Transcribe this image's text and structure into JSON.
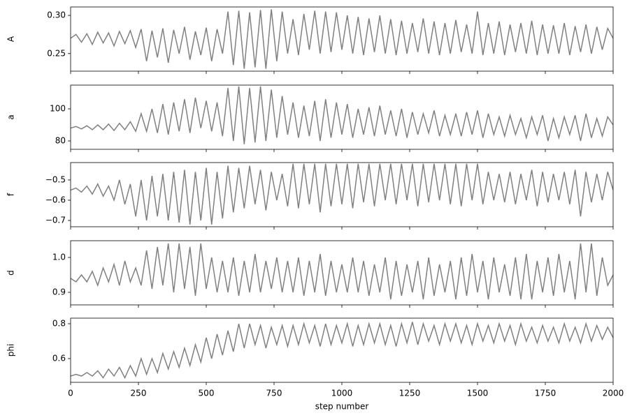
{
  "chart_data": {
    "type": "line",
    "xlabel": "step number",
    "xlim": [
      0,
      2000
    ],
    "xticks": [
      0,
      250,
      500,
      750,
      1000,
      1250,
      1500,
      1750,
      2000
    ],
    "x": [
      0,
      20,
      40,
      60,
      80,
      100,
      120,
      140,
      160,
      180,
      200,
      220,
      240,
      260,
      280,
      300,
      320,
      340,
      360,
      380,
      400,
      420,
      440,
      460,
      480,
      500,
      520,
      540,
      560,
      580,
      600,
      620,
      640,
      660,
      680,
      700,
      720,
      740,
      760,
      780,
      800,
      820,
      840,
      860,
      880,
      900,
      920,
      940,
      960,
      980,
      1000,
      1020,
      1040,
      1060,
      1080,
      1100,
      1120,
      1140,
      1160,
      1180,
      1200,
      1220,
      1240,
      1260,
      1280,
      1300,
      1320,
      1340,
      1360,
      1380,
      1400,
      1420,
      1440,
      1460,
      1480,
      1500,
      1520,
      1540,
      1560,
      1580,
      1600,
      1620,
      1640,
      1660,
      1680,
      1700,
      1720,
      1740,
      1760,
      1780,
      1800,
      1820,
      1840,
      1860,
      1880,
      1900,
      1920,
      1940,
      1960,
      1980,
      2000
    ],
    "series": [
      {
        "name": "A",
        "color": "#808080",
        "ylim": [
          0.227,
          0.311
        ],
        "yticks": [
          0.25,
          {
            "value": 0.3,
            "label": "0.30"
          }
        ],
        "values": [
          0.27,
          0.275,
          0.265,
          0.276,
          0.262,
          0.278,
          0.264,
          0.277,
          0.26,
          0.279,
          0.263,
          0.28,
          0.258,
          0.282,
          0.24,
          0.28,
          0.245,
          0.283,
          0.238,
          0.281,
          0.25,
          0.285,
          0.242,
          0.279,
          0.248,
          0.284,
          0.24,
          0.282,
          0.25,
          0.305,
          0.235,
          0.306,
          0.23,
          0.304,
          0.232,
          0.307,
          0.23,
          0.308,
          0.24,
          0.305,
          0.25,
          0.295,
          0.248,
          0.302,
          0.255,
          0.306,
          0.25,
          0.305,
          0.252,
          0.304,
          0.255,
          0.3,
          0.25,
          0.298,
          0.248,
          0.296,
          0.252,
          0.3,
          0.25,
          0.295,
          0.248,
          0.293,
          0.25,
          0.29,
          0.252,
          0.296,
          0.25,
          0.292,
          0.248,
          0.29,
          0.25,
          0.294,
          0.252,
          0.288,
          0.25,
          0.305,
          0.248,
          0.29,
          0.25,
          0.292,
          0.248,
          0.288,
          0.252,
          0.29,
          0.25,
          0.293,
          0.248,
          0.288,
          0.25,
          0.287,
          0.25,
          0.29,
          0.248,
          0.286,
          0.252,
          0.288,
          0.25,
          0.285,
          0.255,
          0.283,
          0.27
        ]
      },
      {
        "name": "a",
        "color": "#808080",
        "ylim": [
          74.8,
          114.8
        ],
        "yticks": [
          80,
          100
        ],
        "values": [
          88,
          89,
          87.5,
          89.5,
          87,
          90,
          87,
          90.5,
          86.5,
          91,
          87,
          92,
          86,
          97,
          86,
          100,
          85,
          103,
          84,
          104,
          86,
          106,
          85,
          107,
          88,
          105,
          86,
          104,
          83,
          113,
          80,
          114,
          78,
          113,
          79,
          114,
          80,
          112,
          82,
          108,
          84,
          104,
          82,
          102,
          83,
          105,
          80,
          106,
          82,
          104,
          84,
          103,
          82,
          100,
          84,
          101,
          83,
          102,
          84,
          99,
          83,
          100,
          82,
          98,
          84,
          97,
          85,
          99,
          83,
          96,
          84,
          97,
          83,
          98,
          84,
          99,
          82,
          97,
          84,
          95,
          83,
          96,
          84,
          94,
          82,
          95,
          84,
          96,
          80,
          94,
          82,
          95,
          84,
          96,
          80,
          97,
          82,
          94,
          83,
          95,
          90
        ]
      },
      {
        "name": "f",
        "color": "#808080",
        "ylim": [
          -0.731,
          -0.414
        ],
        "yticks": [
          {
            "value": -0.7,
            "label": "−0.7"
          },
          {
            "value": -0.6,
            "label": "−0.6"
          },
          {
            "value": -0.5,
            "label": "−0.5"
          }
        ],
        "values": [
          -0.55,
          -0.54,
          -0.56,
          -0.53,
          -0.57,
          -0.52,
          -0.58,
          -0.53,
          -0.6,
          -0.5,
          -0.62,
          -0.52,
          -0.68,
          -0.5,
          -0.7,
          -0.48,
          -0.68,
          -0.47,
          -0.7,
          -0.46,
          -0.71,
          -0.45,
          -0.72,
          -0.46,
          -0.7,
          -0.44,
          -0.72,
          -0.46,
          -0.69,
          -0.43,
          -0.66,
          -0.44,
          -0.64,
          -0.43,
          -0.62,
          -0.45,
          -0.65,
          -0.46,
          -0.6,
          -0.47,
          -0.63,
          -0.42,
          -0.64,
          -0.42,
          -0.62,
          -0.42,
          -0.66,
          -0.42,
          -0.63,
          -0.42,
          -0.62,
          -0.42,
          -0.64,
          -0.42,
          -0.61,
          -0.42,
          -0.63,
          -0.42,
          -0.6,
          -0.42,
          -0.62,
          -0.42,
          -0.6,
          -0.42,
          -0.63,
          -0.42,
          -0.61,
          -0.42,
          -0.6,
          -0.42,
          -0.62,
          -0.42,
          -0.63,
          -0.42,
          -0.6,
          -0.42,
          -0.62,
          -0.46,
          -0.6,
          -0.47,
          -0.61,
          -0.46,
          -0.62,
          -0.47,
          -0.6,
          -0.45,
          -0.63,
          -0.46,
          -0.61,
          -0.47,
          -0.6,
          -0.46,
          -0.62,
          -0.45,
          -0.68,
          -0.46,
          -0.61,
          -0.47,
          -0.6,
          -0.46,
          -0.55
        ]
      },
      {
        "name": "d",
        "color": "#808080",
        "ylim": [
          0.864,
          1.048
        ],
        "yticks": [
          {
            "value": 0.9,
            "label": "0.9"
          },
          {
            "value": 1.0,
            "label": "1.0"
          }
        ],
        "values": [
          0.94,
          0.93,
          0.95,
          0.93,
          0.96,
          0.92,
          0.97,
          0.93,
          0.98,
          0.92,
          0.99,
          0.93,
          0.97,
          0.92,
          1.02,
          0.91,
          1.03,
          0.92,
          1.04,
          0.9,
          1.04,
          0.91,
          1.03,
          0.89,
          1.04,
          0.91,
          1.0,
          0.9,
          0.99,
          0.9,
          1.0,
          0.89,
          0.99,
          0.9,
          1.01,
          0.9,
          0.99,
          0.91,
          1.0,
          0.9,
          0.99,
          0.9,
          1.0,
          0.89,
          0.99,
          0.9,
          1.01,
          0.89,
          0.99,
          0.9,
          0.98,
          0.9,
          1.0,
          0.9,
          0.99,
          0.89,
          0.98,
          0.9,
          1.0,
          0.88,
          0.99,
          0.89,
          0.98,
          0.9,
          0.99,
          0.88,
          1.0,
          0.89,
          0.98,
          0.9,
          0.99,
          0.88,
          1.0,
          0.89,
          1.01,
          0.9,
          0.99,
          0.88,
          1.0,
          0.9,
          0.98,
          0.89,
          1.0,
          0.88,
          1.01,
          0.88,
          0.99,
          0.9,
          1.0,
          0.89,
          1.01,
          0.9,
          0.99,
          0.88,
          1.04,
          0.9,
          1.04,
          0.89,
          1.0,
          0.92,
          0.95
        ]
      },
      {
        "name": "phi",
        "color": "#808080",
        "ylim": [
          0.464,
          0.832
        ],
        "yticks": [
          0.6,
          0.8
        ],
        "values": [
          0.5,
          0.51,
          0.5,
          0.52,
          0.5,
          0.53,
          0.49,
          0.54,
          0.5,
          0.55,
          0.49,
          0.56,
          0.5,
          0.6,
          0.51,
          0.6,
          0.52,
          0.63,
          0.54,
          0.64,
          0.55,
          0.66,
          0.56,
          0.68,
          0.58,
          0.72,
          0.6,
          0.74,
          0.62,
          0.76,
          0.64,
          0.8,
          0.66,
          0.8,
          0.68,
          0.79,
          0.66,
          0.78,
          0.68,
          0.79,
          0.67,
          0.79,
          0.68,
          0.8,
          0.69,
          0.79,
          0.67,
          0.8,
          0.68,
          0.79,
          0.69,
          0.8,
          0.67,
          0.79,
          0.68,
          0.8,
          0.69,
          0.8,
          0.68,
          0.79,
          0.67,
          0.8,
          0.69,
          0.81,
          0.68,
          0.8,
          0.7,
          0.79,
          0.68,
          0.8,
          0.7,
          0.8,
          0.69,
          0.79,
          0.68,
          0.8,
          0.7,
          0.79,
          0.69,
          0.8,
          0.7,
          0.79,
          0.68,
          0.8,
          0.7,
          0.78,
          0.69,
          0.79,
          0.7,
          0.78,
          0.69,
          0.8,
          0.7,
          0.78,
          0.69,
          0.8,
          0.7,
          0.79,
          0.71,
          0.78,
          0.72
        ]
      }
    ]
  }
}
